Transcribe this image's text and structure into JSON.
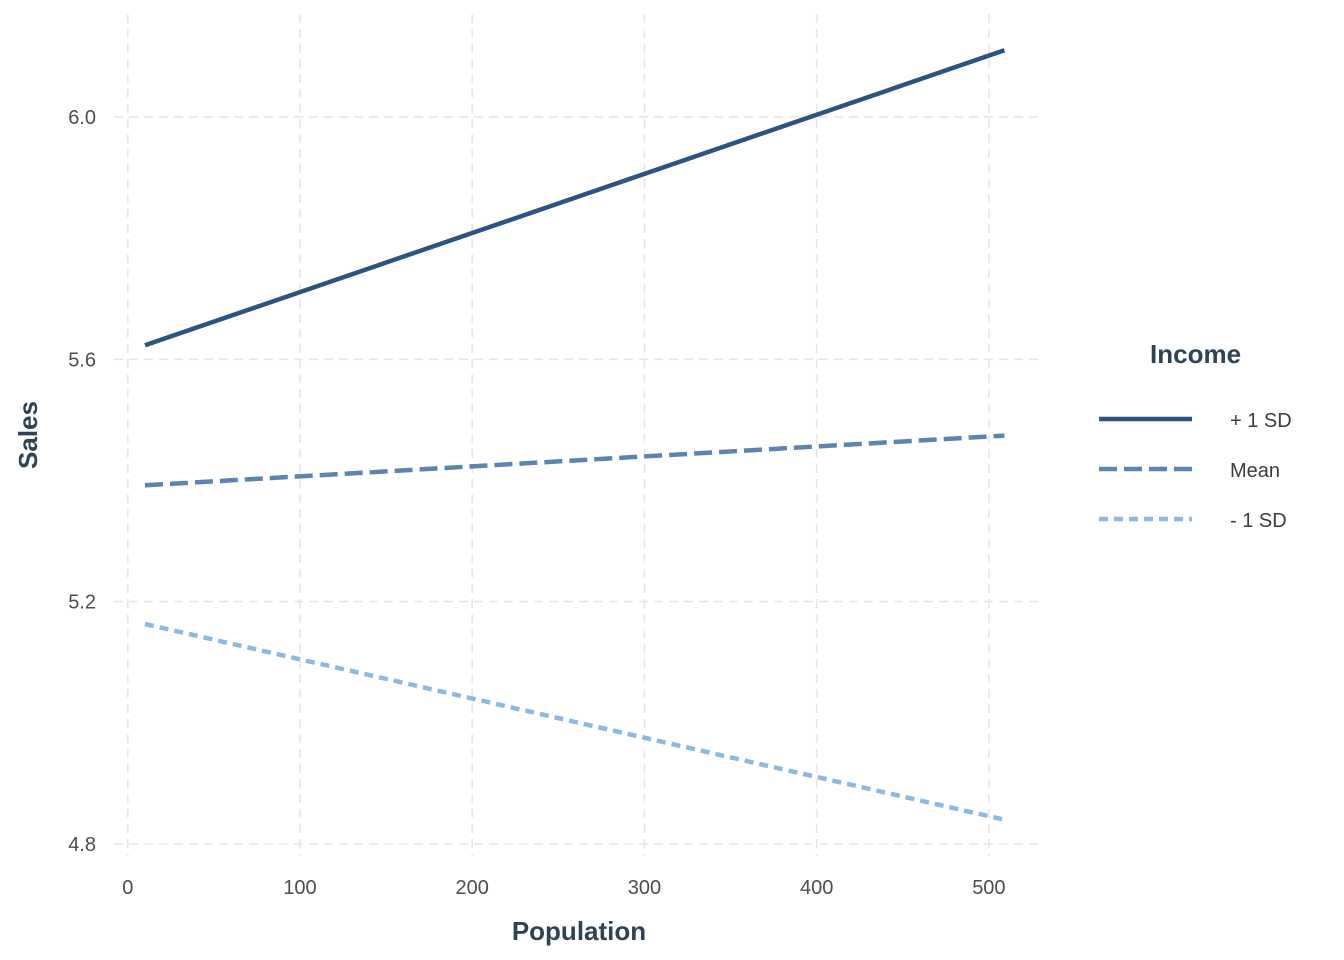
{
  "chart_data": {
    "type": "line",
    "title": "",
    "xlabel": "Population",
    "ylabel": "Sales",
    "xlim": [
      -8,
      532
    ],
    "ylim": [
      4.78,
      6.17
    ],
    "x_ticks": [
      0,
      100,
      200,
      300,
      400,
      500
    ],
    "y_ticks": [
      4.8,
      5.2,
      5.6,
      6.0
    ],
    "x_tick_labels": [
      "0",
      "100",
      "200",
      "300",
      "400",
      "500"
    ],
    "y_tick_labels": [
      "4.8",
      "5.2",
      "5.6",
      "6.0"
    ],
    "grid": true,
    "legend": {
      "title": "Income",
      "position": "right"
    },
    "series": [
      {
        "name": "+ 1 SD",
        "x": [
          10,
          509
        ],
        "y": [
          5.623,
          6.11
        ],
        "color": "#2b5580",
        "dash": "solid"
      },
      {
        "name": "Mean",
        "x": [
          10,
          509
        ],
        "y": [
          5.392,
          5.474
        ],
        "color": "#5b84b1",
        "dash": "dashed"
      },
      {
        "name": "- 1 SD",
        "x": [
          10,
          509
        ],
        "y": [
          5.163,
          4.84
        ],
        "color": "#8db8e0",
        "dash": "dotted"
      }
    ]
  }
}
